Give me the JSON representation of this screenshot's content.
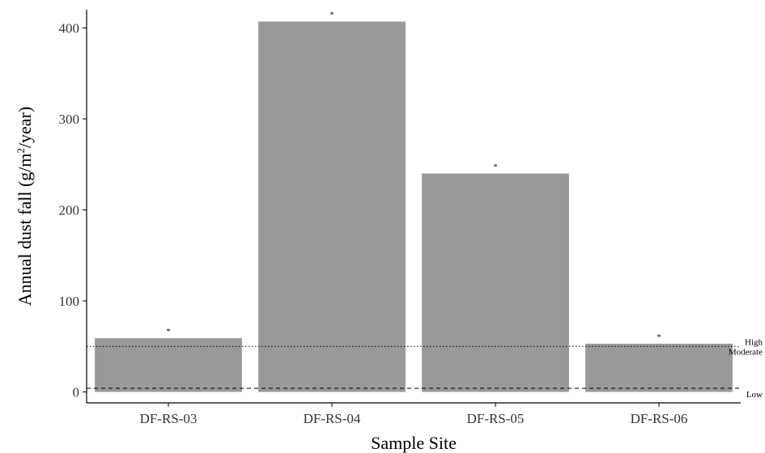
{
  "colors": {
    "bar": "#999999",
    "axis": "#000000",
    "text": "#333333"
  },
  "chart_data": {
    "type": "bar",
    "categories": [
      "DF-RS-03",
      "DF-RS-04",
      "DF-RS-05",
      "DF-RS-06"
    ],
    "values": [
      59,
      407,
      240,
      53
    ],
    "significance_marks": [
      "*",
      "*",
      "*",
      "*"
    ],
    "xlabel": "Sample Site",
    "ylabel": {
      "before": "Annual dust fall (g/m",
      "sup": "2",
      "after": "/year)"
    },
    "ylim": [
      -12,
      420
    ],
    "yticks": [
      0,
      100,
      200,
      300,
      400
    ],
    "grid": false,
    "reference_lines": [
      {
        "value": 50,
        "style": "dotted",
        "labels": [
          "High",
          "Moderate"
        ]
      },
      {
        "value": 4,
        "style": "dashed",
        "labels": [
          "Low"
        ]
      }
    ]
  }
}
